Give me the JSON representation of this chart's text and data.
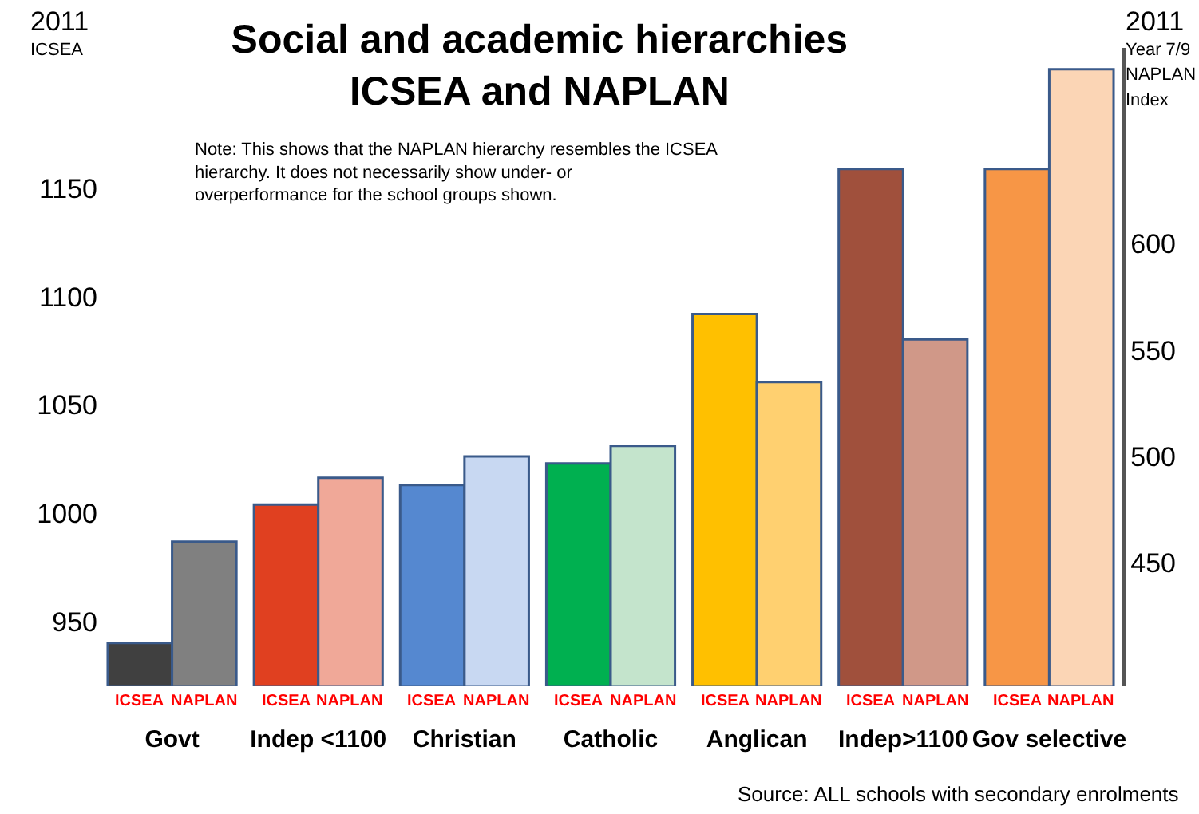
{
  "chart_data": {
    "type": "bar",
    "title": "Social and academic hierarchies\nICSEA and NAPLAN",
    "ylabel": "2011\nICSEA",
    "y2label": "2011\nYear 7/9\nNAPLAN\nIndex",
    "categories": [
      "Govt",
      "Indep <1100",
      "Christian",
      "Catholic",
      "Anglican",
      "Indep>1100",
      "Gov selective"
    ],
    "series": [
      {
        "name": "ICSEA",
        "colors": [
          "#404040",
          "#e04020",
          "#5588d0",
          "#00b050",
          "#ffc000",
          "#a0503c",
          "#f79646"
        ],
        "values": [
          940,
          1004,
          1013,
          1023,
          1092,
          1159,
          1159
        ]
      },
      {
        "name": "NAPLAN",
        "axis": "y2",
        "colors": [
          "#808080",
          "#f0a898",
          "#c8d8f2",
          "#c4e4cc",
          "#ffd070",
          "#d09888",
          "#fbd5b5"
        ],
        "values": [
          460,
          490,
          500,
          505,
          535,
          555,
          682
        ]
      }
    ],
    "ylim": [
      920,
      1215
    ],
    "yticks": [
      950,
      1000,
      1050,
      1100,
      1150
    ],
    "y2lim": [
      392,
      692
    ],
    "y2ticks": [
      450,
      500,
      550,
      600
    ],
    "annotations": [
      "Note: This shows that the NAPLAN hierarchy resembles the ICSEA hierarchy. It does not necessarily show under- or overperformance for the school groups shown.",
      "Source: ALL schools with secondary enrolments"
    ]
  }
}
